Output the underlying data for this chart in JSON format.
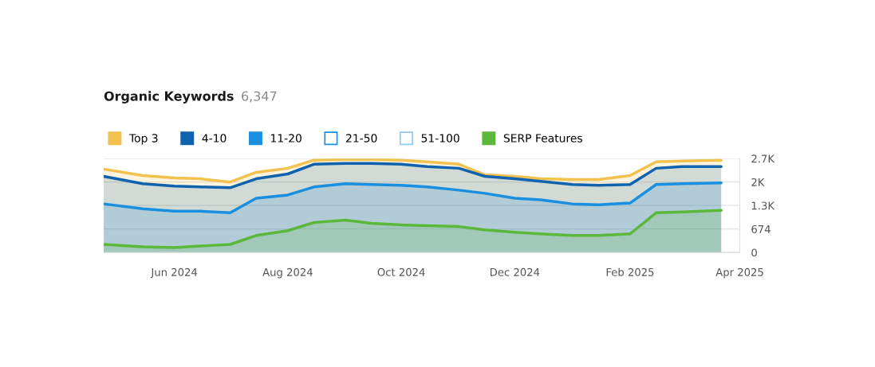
{
  "chart_data": {
    "type": "area",
    "title": "Organic Keywords",
    "subtitle": "6,347",
    "x": [
      "2024-04-24",
      "2024-05-15",
      "2024-06-01",
      "2024-06-15",
      "2024-07-01",
      "2024-07-15",
      "2024-08-01",
      "2024-08-15",
      "2024-09-01",
      "2024-09-15",
      "2024-10-01",
      "2024-10-15",
      "2024-11-01",
      "2024-11-15",
      "2024-12-01",
      "2024-12-15",
      "2025-01-01",
      "2025-01-15",
      "2025-02-01",
      "2025-02-15",
      "2025-03-01",
      "2025-03-22"
    ],
    "series": [
      {
        "name": "Top 3",
        "color": "#f2c14e",
        "values": [
          2394,
          2208,
          2138,
          2115,
          2022,
          2300,
          2417,
          2650,
          2673,
          2673,
          2650,
          2603,
          2533,
          2231,
          2185,
          2115,
          2092,
          2092,
          2208,
          2603,
          2626,
          2650
        ]
      },
      {
        "name": "4-10",
        "color": "#0f62ae",
        "values": [
          2185,
          1975,
          1906,
          1882,
          1859,
          2115,
          2254,
          2533,
          2556,
          2556,
          2533,
          2463,
          2417,
          2185,
          2115,
          2045,
          1952,
          1929,
          1952,
          2417,
          2463,
          2463
        ]
      },
      {
        "name": "11-20",
        "color": "#1a8fe0",
        "values": [
          1394,
          1255,
          1185,
          1185,
          1139,
          1557,
          1650,
          1882,
          1975,
          1952,
          1929,
          1882,
          1789,
          1697,
          1557,
          1511,
          1394,
          1371,
          1418,
          1952,
          1975,
          1999
        ]
      },
      {
        "name": "21-50",
        "color": "#1a8fe0",
        "values": [
          null,
          null,
          null,
          null,
          null,
          null,
          null,
          null,
          null,
          null,
          null,
          null,
          null,
          null,
          null,
          null,
          null,
          null,
          null,
          null,
          null,
          null
        ]
      },
      {
        "name": "51-100",
        "color": "#8ecbf2",
        "values": [
          null,
          null,
          null,
          null,
          null,
          null,
          null,
          null,
          null,
          null,
          null,
          null,
          null,
          null,
          null,
          null,
          null,
          null,
          null,
          null,
          null,
          null
        ]
      },
      {
        "name": "SERP Features",
        "color": "#5cb83a",
        "values": [
          232,
          163,
          139,
          186,
          232,
          488,
          627,
          860,
          930,
          837,
          790,
          767,
          744,
          651,
          581,
          535,
          488,
          488,
          535,
          1139,
          1162,
          1208
        ]
      }
    ],
    "xlim": [
      "2024-04-24",
      "2025-04-01"
    ],
    "xticks": [
      {
        "value": "2024-06-01",
        "label": "Jun 2024"
      },
      {
        "value": "2024-08-01",
        "label": "Aug 2024"
      },
      {
        "value": "2024-10-01",
        "label": "Oct 2024"
      },
      {
        "value": "2024-12-01",
        "label": "Dec 2024"
      },
      {
        "value": "2025-02-01",
        "label": "Feb 2025"
      },
      {
        "value": "2025-04-01",
        "label": "Apr 2025"
      }
    ],
    "ylim": [
      0,
      2696
    ],
    "yticks": [
      0,
      674,
      {
        "value": 1348,
        "label": "1.3K"
      },
      {
        "value": 2022,
        "label": "2K"
      },
      {
        "value": 2696,
        "label": "2.7K"
      }
    ],
    "grid": "y",
    "legend": "top left"
  }
}
